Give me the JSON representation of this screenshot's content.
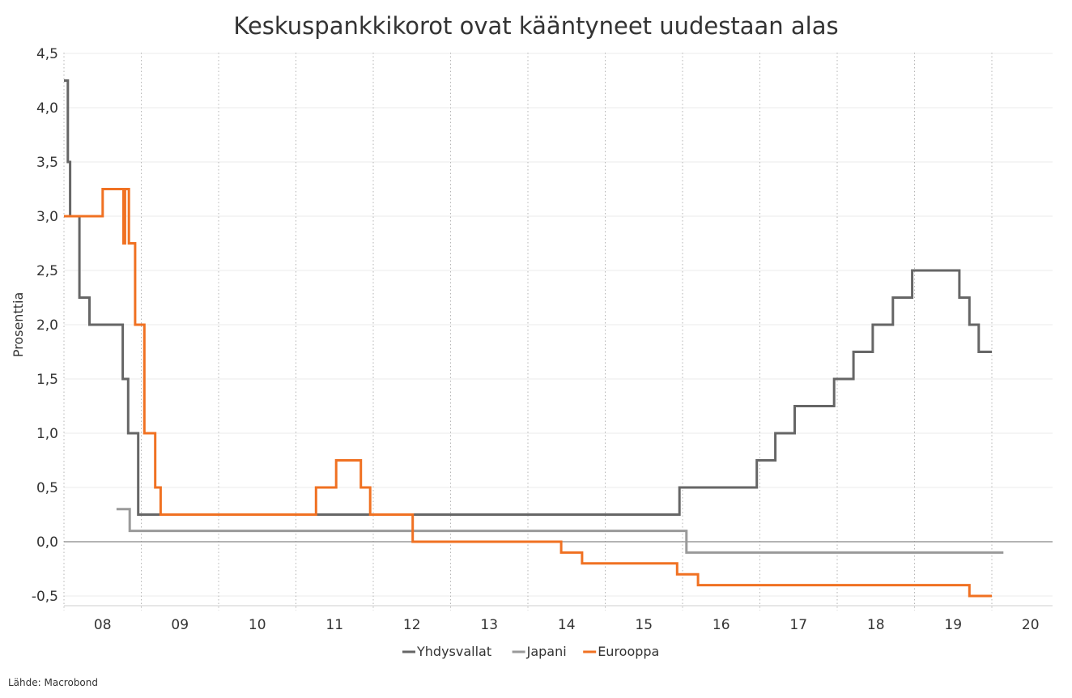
{
  "chart_data": {
    "type": "line",
    "title": "Keskuspankkikorot ovat kääntyneet uudestaan alas",
    "ylabel": "Prosenttia",
    "source": "Lähde: Macrobond",
    "ylim": [
      -0.6,
      4.5
    ],
    "y_ticks": [
      -0.5,
      0.0,
      0.5,
      1.0,
      1.5,
      2.0,
      2.5,
      3.0,
      3.5,
      4.0,
      4.5
    ],
    "y_tick_labels": [
      "-0,5",
      "0,0",
      "0,5",
      "1,0",
      "1,5",
      "2,0",
      "2,5",
      "3,0",
      "3,5",
      "4,0",
      "4,5"
    ],
    "xlim": [
      2008.0,
      2020.75
    ],
    "x_tick_labels": [
      "08",
      "09",
      "10",
      "11",
      "12",
      "13",
      "14",
      "15",
      "16",
      "17",
      "18",
      "19",
      "20"
    ],
    "grid": true,
    "legend": "bottom-center",
    "series": [
      {
        "name": "Yhdysvallat",
        "color": "#666666",
        "points": [
          [
            2008.0,
            4.25
          ],
          [
            2008.05,
            3.5
          ],
          [
            2008.08,
            3.0
          ],
          [
            2008.2,
            2.25
          ],
          [
            2008.33,
            2.0
          ],
          [
            2008.76,
            1.5
          ],
          [
            2008.83,
            1.0
          ],
          [
            2008.96,
            0.25
          ],
          [
            2015.96,
            0.5
          ],
          [
            2016.96,
            0.75
          ],
          [
            2017.2,
            1.0
          ],
          [
            2017.45,
            1.25
          ],
          [
            2017.96,
            1.5
          ],
          [
            2018.21,
            1.75
          ],
          [
            2018.46,
            2.0
          ],
          [
            2018.72,
            2.25
          ],
          [
            2018.97,
            2.5
          ],
          [
            2019.58,
            2.25
          ],
          [
            2019.71,
            2.0
          ],
          [
            2019.83,
            1.75
          ],
          [
            2020.0,
            1.75
          ]
        ]
      },
      {
        "name": "Japani",
        "color": "#9a9a9a",
        "points": [
          [
            2008.68,
            0.3
          ],
          [
            2008.85,
            0.1
          ],
          [
            2016.05,
            -0.1
          ],
          [
            2020.15,
            -0.1
          ]
        ]
      },
      {
        "name": "Eurooppa",
        "color": "#f07122",
        "points": [
          [
            2008.0,
            3.0
          ],
          [
            2008.5,
            3.25
          ],
          [
            2008.77,
            2.75
          ],
          [
            2008.79,
            3.25
          ],
          [
            2008.84,
            2.75
          ],
          [
            2008.92,
            2.0
          ],
          [
            2009.04,
            1.0
          ],
          [
            2009.18,
            0.5
          ],
          [
            2009.25,
            0.25
          ],
          [
            2011.26,
            0.5
          ],
          [
            2011.52,
            0.75
          ],
          [
            2011.84,
            0.5
          ],
          [
            2011.96,
            0.25
          ],
          [
            2012.51,
            0.0
          ],
          [
            2014.43,
            -0.1
          ],
          [
            2014.7,
            -0.2
          ],
          [
            2015.93,
            -0.3
          ],
          [
            2016.2,
            -0.4
          ],
          [
            2019.71,
            -0.5
          ],
          [
            2020.0,
            -0.5
          ]
        ]
      }
    ]
  }
}
